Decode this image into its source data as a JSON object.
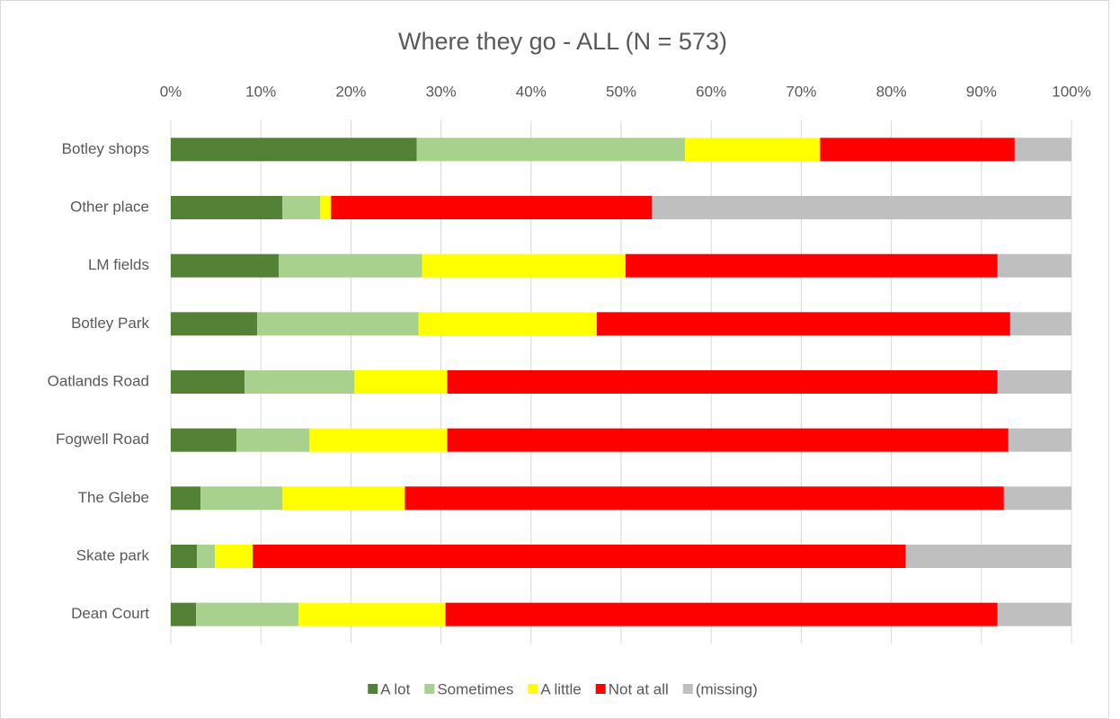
{
  "chart_data": {
    "type": "stacked-bar-horizontal",
    "title": "Where they go - ALL (N = 573)",
    "categories": [
      "Botley shops",
      "Other place",
      "LM fields",
      "Botley Park",
      "Oatlands Road",
      "Fogwell Road",
      "The Glebe",
      "Skate park",
      "Dean Court"
    ],
    "series": [
      {
        "name": "A lot",
        "color": "#538135",
        "values": [
          27.3,
          12.4,
          12.0,
          9.6,
          8.2,
          7.3,
          3.3,
          2.9,
          2.8
        ]
      },
      {
        "name": "Sometimes",
        "color": "#a9d18e",
        "values": [
          29.8,
          4.2,
          15.9,
          17.9,
          12.2,
          8.1,
          9.1,
          2.0,
          11.4
        ]
      },
      {
        "name": "A little",
        "color": "#ffff00",
        "values": [
          15.0,
          1.2,
          22.6,
          19.8,
          10.3,
          15.3,
          13.6,
          4.2,
          16.3
        ]
      },
      {
        "name": "Not at all",
        "color": "#ff0000",
        "values": [
          21.6,
          35.6,
          41.3,
          45.9,
          61.1,
          62.3,
          66.5,
          72.5,
          61.3
        ]
      },
      {
        "name": "(missing)",
        "color": "#bfbfbf",
        "values": [
          6.3,
          46.6,
          8.2,
          6.8,
          8.2,
          7.0,
          7.5,
          18.4,
          8.2
        ]
      }
    ],
    "xlim": [
      0,
      100
    ],
    "xticks": [
      {
        "value": 0,
        "label": "0%"
      },
      {
        "value": 10,
        "label": "10%"
      },
      {
        "value": 20,
        "label": "20%"
      },
      {
        "value": 30,
        "label": "30%"
      },
      {
        "value": 40,
        "label": "40%"
      },
      {
        "value": 50,
        "label": "50%"
      },
      {
        "value": 60,
        "label": "60%"
      },
      {
        "value": 70,
        "label": "70%"
      },
      {
        "value": 80,
        "label": "80%"
      },
      {
        "value": 90,
        "label": "90%"
      },
      {
        "value": 100,
        "label": "100%"
      }
    ],
    "grid": true,
    "legend": "bottom"
  }
}
